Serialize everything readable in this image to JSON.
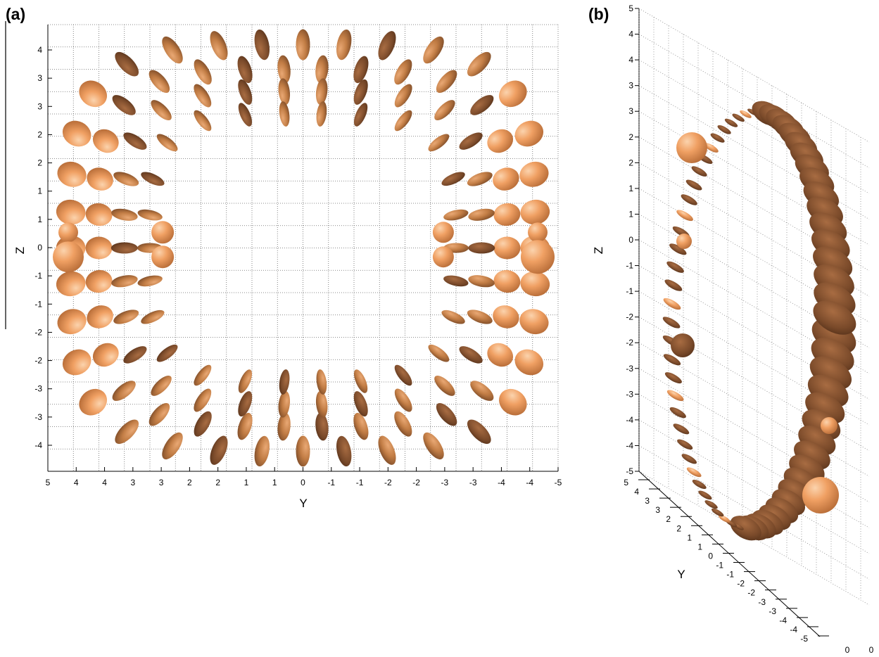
{
  "panels": [
    {
      "label": "(a)"
    },
    {
      "label": "(b)"
    }
  ],
  "colors": {
    "ellipsoid_light": "#f0a063",
    "ellipsoid_mid": "#c9844a",
    "ellipsoid_dark": "#7a4a2a",
    "grid": "#555555"
  },
  "chart_data": [
    {
      "type": "scatter",
      "panel": "(a)",
      "description_of_marks": "ellipsoids arranged on an annular grid",
      "xlabel": "Y",
      "ylabel": "Z",
      "x_tick_labels": [
        "5",
        "4",
        "4",
        "3",
        "3",
        "2",
        "2",
        "1",
        "1",
        "0",
        "-1",
        "-1",
        "-2",
        "-2",
        "-3",
        "-3",
        "-4",
        "-4",
        "-5"
      ],
      "y_tick_labels": [
        "4",
        "3",
        "3",
        "2",
        "2",
        "1",
        "1",
        "0",
        "-1",
        "-1",
        "-2",
        "-2",
        "-3",
        "-3",
        "-4"
      ],
      "xlim": [
        5,
        -5
      ],
      "ylim": [
        -5,
        5
      ],
      "grid": true
    },
    {
      "type": "scatter",
      "panel": "(b)",
      "description_of_marks": "3D oblique view of ellipsoids",
      "xlabel": "Y",
      "ylabel": "Z",
      "z_tick_labels": [
        "5",
        "4",
        "4",
        "3",
        "3",
        "2",
        "2",
        "1",
        "1",
        "0",
        "-1",
        "-1",
        "-2",
        "-2",
        "-3",
        "-3",
        "-4",
        "-4",
        "-5"
      ],
      "y_tick_labels": [
        "5",
        "4",
        "3",
        "3",
        "2",
        "2",
        "1",
        "1",
        "0",
        "-1",
        "-1",
        "-2",
        "-2",
        "-3",
        "-3",
        "-4",
        "-4",
        "-5"
      ],
      "x_tick_labels": [
        "0",
        "0"
      ],
      "zlim": [
        -5,
        5
      ],
      "ylim": [
        -5,
        5
      ],
      "grid": true
    }
  ]
}
